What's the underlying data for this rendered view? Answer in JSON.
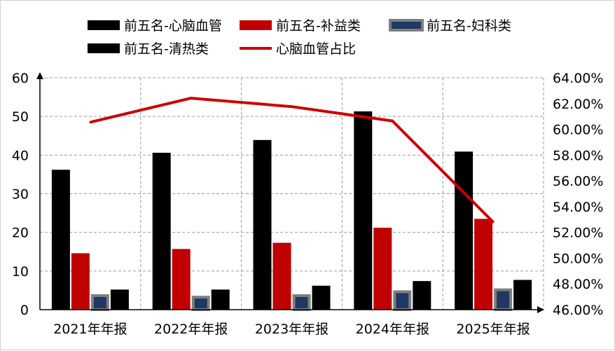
{
  "chart_data": {
    "type": "bar",
    "categories": [
      "2021年年报",
      "2022年年报",
      "2023年年报",
      "2024年年报",
      "2025年年报"
    ],
    "series": [
      {
        "name": "前五名-心脑血管",
        "type": "bar",
        "axis": "left",
        "values": [
          36.2,
          40.6,
          43.9,
          51.3,
          40.9
        ],
        "color": "#000000"
      },
      {
        "name": "前五名-补益类",
        "type": "bar",
        "axis": "left",
        "values": [
          14.6,
          15.7,
          17.3,
          21.2,
          23.5
        ],
        "color": "#c00000"
      },
      {
        "name": "前五名-妇科类",
        "type": "bar",
        "axis": "left",
        "values": [
          4.0,
          3.6,
          4.0,
          5.0,
          5.5
        ],
        "color": "#1f3864",
        "border": "#7f7f7f"
      },
      {
        "name": "前五名-清热类",
        "type": "bar",
        "axis": "left",
        "values": [
          5.2,
          5.2,
          6.2,
          7.4,
          7.7
        ],
        "color": "#000000"
      },
      {
        "name": "心脑血管占比",
        "type": "line",
        "axis": "right",
        "values": [
          0.6055,
          0.6242,
          0.6176,
          0.6065,
          0.528
        ],
        "color": "#cc0000"
      }
    ],
    "yleft": {
      "ylim": [
        0,
        60
      ],
      "ticks": [
        0,
        10,
        20,
        30,
        40,
        50,
        60
      ]
    },
    "yright": {
      "ylim": [
        0.46,
        0.64
      ],
      "ticks": [
        "46.00%",
        "48.00%",
        "50.00%",
        "52.00%",
        "54.00%",
        "56.00%",
        "58.00%",
        "60.00%",
        "62.00%",
        "64.00%"
      ]
    },
    "grid": true,
    "legend": "top"
  }
}
